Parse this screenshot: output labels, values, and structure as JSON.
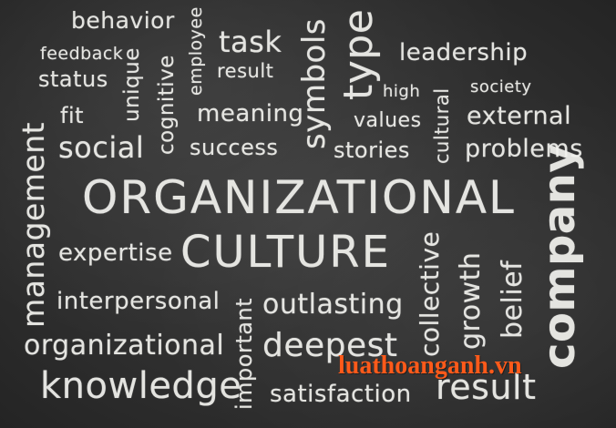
{
  "words": {
    "behavior": "behavior",
    "employee": "employee",
    "task": "task",
    "symbols": "symbols",
    "type": "type",
    "feedback": "feedback",
    "status": "status",
    "unique": "unique",
    "cognitive": "cognitive",
    "result_top": "result",
    "leadership": "leadership",
    "high": "high",
    "society": "society",
    "fit": "fit",
    "meaning": "meaning",
    "values": "values",
    "cultural": "cultural",
    "external": "external",
    "social": "social",
    "success": "success",
    "stories": "stories",
    "problems": "problems",
    "management": "management",
    "organizational_main": "ORGANIZATIONAL",
    "company": "company",
    "expertise": "expertise",
    "culture": "CULTURE",
    "collective": "collective",
    "growth": "growth",
    "belief": "belief",
    "interpersonal": "interpersonal",
    "important": "important",
    "outlasting": "outlasting",
    "organizational_small": "organizational",
    "deepest": "deepest",
    "knowledge": "knowledge",
    "satisfaction": "satisfaction",
    "result_bottom": "result"
  },
  "watermark": "luathoanganh.vn",
  "colors": {
    "chalk": "#f2f2ee",
    "board": "#2e2e2e",
    "watermark": "#ff5a1a"
  }
}
